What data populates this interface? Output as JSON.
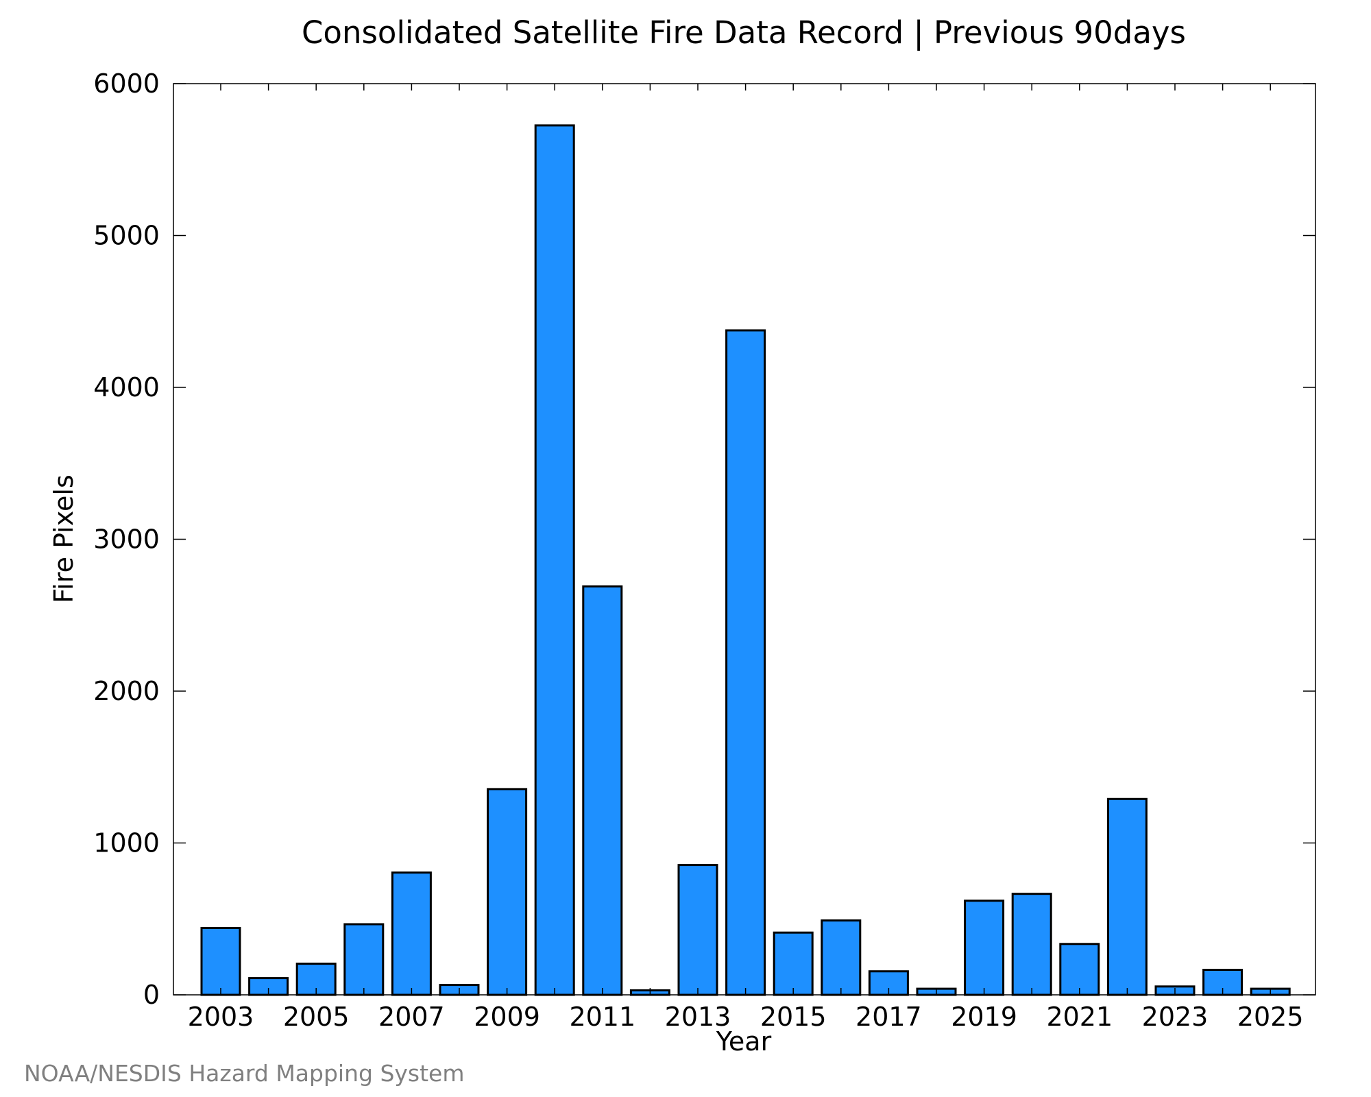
{
  "chart_data": {
    "type": "bar",
    "title": "Consolidated Satellite Fire Data Record | Previous 90days",
    "xlabel": "Year",
    "ylabel": "Fire Pixels",
    "categories": [
      "2003",
      "2004",
      "2005",
      "2006",
      "2007",
      "2008",
      "2009",
      "2010",
      "2011",
      "2012",
      "2013",
      "2014",
      "2015",
      "2016",
      "2017",
      "2018",
      "2019",
      "2020",
      "2021",
      "2022",
      "2023",
      "2024",
      "2025"
    ],
    "x_tick_labels": [
      "2003",
      "2005",
      "2007",
      "2009",
      "2011",
      "2013",
      "2015",
      "2017",
      "2019",
      "2021",
      "2023",
      "2025"
    ],
    "values": [
      440,
      110,
      205,
      465,
      805,
      65,
      1355,
      5725,
      2690,
      30,
      855,
      4375,
      410,
      490,
      155,
      40,
      620,
      665,
      335,
      1290,
      55,
      165,
      40
    ],
    "ylim": [
      0,
      6000
    ],
    "y_ticks": [
      0,
      1000,
      2000,
      3000,
      4000,
      5000,
      6000
    ],
    "bar_color": "#1e90ff",
    "grid": false,
    "legend": "none"
  },
  "credit": "NOAA/NESDIS Hazard Mapping System"
}
